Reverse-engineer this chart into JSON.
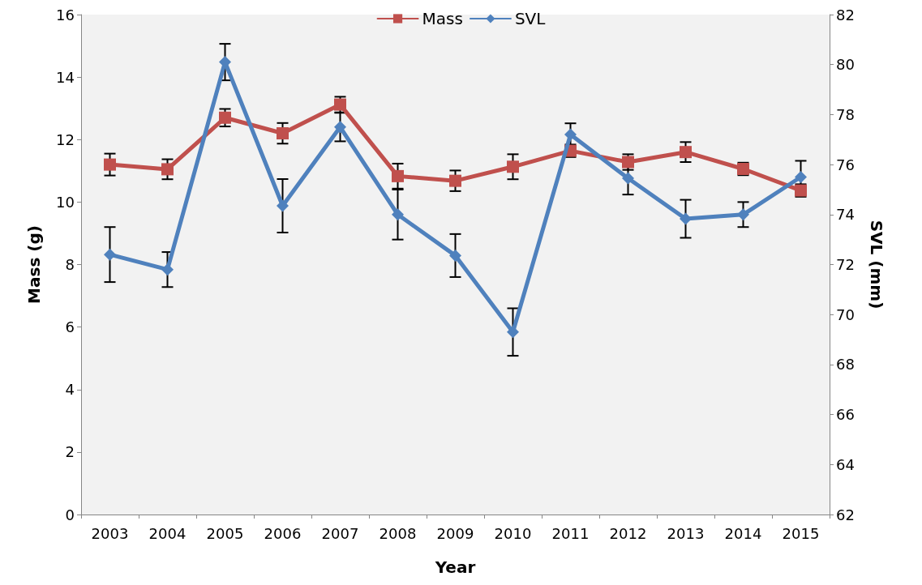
{
  "chart_data": {
    "type": "line",
    "xlabel": "Year",
    "ylabel": "Mass (g)",
    "y2label": "SVL (mm)",
    "categories": [
      "2003",
      "2004",
      "2005",
      "2006",
      "2007",
      "2008",
      "2009",
      "2010",
      "2011",
      "2012",
      "2013",
      "2014",
      "2015"
    ],
    "ylim": [
      0,
      16
    ],
    "yticks": [
      0,
      2,
      4,
      6,
      8,
      10,
      12,
      14,
      16
    ],
    "y2lim": [
      62,
      82
    ],
    "y2ticks": [
      62,
      64,
      66,
      68,
      70,
      72,
      74,
      76,
      78,
      80,
      82
    ],
    "grid": false,
    "legend": "top",
    "line_style": "solid",
    "series": [
      {
        "name": "Mass",
        "color": "#c0504d",
        "marker": "square",
        "values": [
          11.2,
          11.05,
          12.7,
          12.2,
          13.12,
          10.83,
          10.68,
          11.13,
          11.64,
          11.28,
          11.6,
          11.06,
          10.37
        ],
        "errors": [
          0.35,
          0.32,
          0.28,
          0.33,
          0.25,
          0.4,
          0.33,
          0.4,
          0.2,
          0.25,
          0.32,
          0.2,
          0.2
        ]
      },
      {
        "name": "SVL",
        "color": "#4f81bd",
        "marker": "diamond",
        "axis": "y2",
        "values": [
          72.4,
          71.8,
          80.1,
          74.35,
          77.5,
          74.0,
          72.36,
          69.3,
          77.2,
          75.45,
          73.83,
          74.0,
          75.5
        ],
        "errors": [
          1.1,
          0.7,
          0.73,
          1.07,
          0.57,
          1.0,
          0.86,
          0.95,
          0.45,
          0.65,
          0.76,
          0.5,
          0.65
        ]
      }
    ]
  }
}
